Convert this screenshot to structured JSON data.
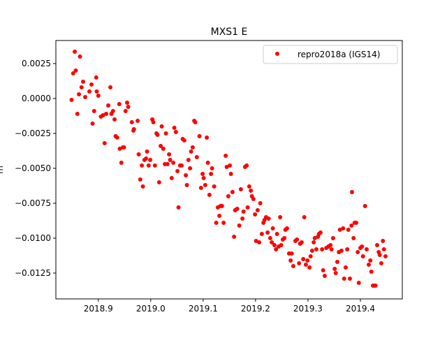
{
  "chart_data": {
    "type": "scatter",
    "title": "MXS1 E",
    "xlabel": "",
    "ylabel": "m",
    "xlim": [
      2018.819,
      2019.48
    ],
    "ylim": [
      -0.01435,
      0.00415
    ],
    "xticks": [
      2018.9,
      2019.0,
      2019.1,
      2019.2,
      2019.3,
      2019.4
    ],
    "xtick_labels": [
      "2018.9",
      "2019.0",
      "2019.1",
      "2019.2",
      "2019.3",
      "2019.4"
    ],
    "yticks": [
      0.0025,
      0.0,
      -0.0025,
      -0.005,
      -0.0075,
      -0.01,
      -0.0125
    ],
    "ytick_labels": [
      "0.0025",
      "0.0000",
      "−0.0025",
      "−0.0050",
      "−0.0075",
      "−0.0100",
      "−0.0125"
    ],
    "grid": false,
    "legend_position": "top-right",
    "series": [
      {
        "name": "repro2018a (IGS14)",
        "color": "#ff0000",
        "marker": "circle",
        "points": [
          [
            2018.849,
            -0.0001
          ],
          [
            2018.855,
            0.00335
          ],
          [
            2018.852,
            0.0018
          ],
          [
            2018.857,
            0.002
          ],
          [
            2018.86,
            -0.0011
          ],
          [
            2018.863,
            0.0003
          ],
          [
            2018.865,
            0.003
          ],
          [
            2018.868,
            0.0008
          ],
          [
            2018.871,
            0.0012
          ],
          [
            2018.875,
            0.0001
          ],
          [
            2018.883,
            0.0005
          ],
          [
            2018.887,
            0.001
          ],
          [
            2018.889,
            -0.0018
          ],
          [
            2018.892,
            -0.0009
          ],
          [
            2018.896,
            0.0015
          ],
          [
            2018.897,
            0.0005
          ],
          [
            2018.9,
            0.0002
          ],
          [
            2018.905,
            -0.0013
          ],
          [
            2018.909,
            -0.0012
          ],
          [
            2018.912,
            -0.0032
          ],
          [
            2018.915,
            -0.0011
          ],
          [
            2018.919,
            -0.0005
          ],
          [
            2018.923,
            0.0008
          ],
          [
            2018.925,
            -0.0011
          ],
          [
            2018.928,
            -0.0009
          ],
          [
            2018.931,
            -0.0015
          ],
          [
            2018.933,
            -0.0027
          ],
          [
            2018.936,
            -0.0028
          ],
          [
            2018.94,
            -0.0004
          ],
          [
            2018.941,
            -0.0036
          ],
          [
            2018.944,
            -0.0046
          ],
          [
            2018.947,
            -0.0035
          ],
          [
            2018.949,
            -0.0035
          ],
          [
            2018.952,
            -0.0009
          ],
          [
            2018.955,
            -0.0003
          ],
          [
            2018.957,
            -0.0006
          ],
          [
            2018.964,
            -0.0017
          ],
          [
            2018.967,
            -0.0023
          ],
          [
            2018.968,
            -0.0022
          ],
          [
            2018.975,
            -0.0016
          ],
          [
            2018.977,
            -0.004
          ],
          [
            2018.98,
            -0.0058
          ],
          [
            2018.983,
            -0.0048
          ],
          [
            2018.985,
            -0.0063
          ],
          [
            2018.988,
            -0.0044
          ],
          [
            2018.991,
            -0.0043
          ],
          [
            2018.993,
            -0.0038
          ],
          [
            2018.996,
            -0.0048
          ],
          [
            2018.999,
            -0.0044
          ],
          [
            2019.003,
            -0.0015
          ],
          [
            2019.005,
            -0.0017
          ],
          [
            2019.008,
            -0.0048
          ],
          [
            2019.011,
            -0.0025
          ],
          [
            2019.013,
            -0.0026
          ],
          [
            2019.016,
            -0.006
          ],
          [
            2019.019,
            -0.0034
          ],
          [
            2019.021,
            -0.002
          ],
          [
            2019.024,
            -0.0036
          ],
          [
            2019.027,
            -0.0047
          ],
          [
            2019.029,
            -0.0025
          ],
          [
            2019.032,
            -0.0047
          ],
          [
            2019.035,
            -0.004
          ],
          [
            2019.037,
            -0.0044
          ],
          [
            2019.04,
            -0.0057
          ],
          [
            2019.043,
            -0.0046
          ],
          [
            2019.045,
            -0.0021
          ],
          [
            2019.048,
            -0.0024
          ],
          [
            2019.051,
            -0.0052
          ],
          [
            2019.053,
            -0.0078
          ],
          [
            2019.056,
            -0.0048
          ],
          [
            2019.059,
            -0.0048
          ],
          [
            2019.061,
            -0.0029
          ],
          [
            2019.064,
            -0.003
          ],
          [
            2019.067,
            -0.0055
          ],
          [
            2019.069,
            -0.0062
          ],
          [
            2019.072,
            -0.0044
          ],
          [
            2019.075,
            -0.005
          ],
          [
            2019.077,
            -0.0038
          ],
          [
            2019.08,
            -0.0035
          ],
          [
            2019.083,
            -0.0016
          ],
          [
            2019.085,
            -0.0017
          ],
          [
            2019.088,
            -0.0042
          ],
          [
            2019.093,
            -0.0027
          ],
          [
            2019.096,
            -0.0064
          ],
          [
            2019.099,
            -0.0054
          ],
          [
            2019.101,
            -0.0057
          ],
          [
            2019.104,
            -0.0062
          ],
          [
            2019.107,
            -0.0028
          ],
          [
            2019.109,
            -0.0046
          ],
          [
            2019.112,
            -0.0069
          ],
          [
            2019.115,
            -0.0054
          ],
          [
            2019.117,
            -0.005
          ],
          [
            2019.121,
            -0.0063
          ],
          [
            2019.125,
            -0.0089
          ],
          [
            2019.128,
            -0.0078
          ],
          [
            2019.131,
            -0.0084
          ],
          [
            2019.133,
            -0.0077
          ],
          [
            2019.136,
            -0.0077
          ],
          [
            2019.139,
            -0.0089
          ],
          [
            2019.143,
            -0.0041
          ],
          [
            2019.145,
            -0.0049
          ],
          [
            2019.148,
            -0.007
          ],
          [
            2019.151,
            -0.0048
          ],
          [
            2019.153,
            -0.0054
          ],
          [
            2019.156,
            -0.0067
          ],
          [
            2019.159,
            -0.0099
          ],
          [
            2019.161,
            -0.008
          ],
          [
            2019.165,
            -0.0079
          ],
          [
            2019.169,
            -0.0091
          ],
          [
            2019.172,
            -0.0065
          ],
          [
            2019.175,
            -0.0086
          ],
          [
            2019.177,
            -0.0081
          ],
          [
            2019.18,
            -0.0049
          ],
          [
            2019.183,
            -0.0048
          ],
          [
            2019.185,
            -0.0078
          ],
          [
            2019.188,
            -0.0063
          ],
          [
            2019.191,
            -0.0066
          ],
          [
            2019.193,
            -0.007
          ],
          [
            2019.196,
            -0.0072
          ],
          [
            2019.199,
            -0.0083
          ],
          [
            2019.201,
            -0.0102
          ],
          [
            2019.204,
            -0.008
          ],
          [
            2019.207,
            -0.0103
          ],
          [
            2019.209,
            -0.0075
          ],
          [
            2019.212,
            -0.0097
          ],
          [
            2019.215,
            -0.0089
          ],
          [
            2019.217,
            -0.0087
          ],
          [
            2019.22,
            -0.0085
          ],
          [
            2019.223,
            -0.0096
          ],
          [
            2019.225,
            -0.0086
          ],
          [
            2019.228,
            -0.01
          ],
          [
            2019.231,
            -0.0103
          ],
          [
            2019.233,
            -0.0093
          ],
          [
            2019.236,
            -0.0105
          ],
          [
            2019.239,
            -0.0108
          ],
          [
            2019.241,
            -0.0097
          ],
          [
            2019.244,
            -0.0106
          ],
          [
            2019.247,
            -0.0085
          ],
          [
            2019.249,
            -0.0105
          ],
          [
            2019.252,
            -0.0101
          ],
          [
            2019.255,
            -0.01
          ],
          [
            2019.257,
            -0.0094
          ],
          [
            2019.26,
            -0.0093
          ],
          [
            2019.264,
            -0.0111
          ],
          [
            2019.267,
            -0.0116
          ],
          [
            2019.269,
            -0.0111
          ],
          [
            2019.272,
            -0.012
          ],
          [
            2019.276,
            -0.0102
          ],
          [
            2019.279,
            -0.0101
          ],
          [
            2019.283,
            -0.0118
          ],
          [
            2019.285,
            -0.0104
          ],
          [
            2019.288,
            -0.0103
          ],
          [
            2019.291,
            -0.0115
          ],
          [
            2019.293,
            -0.0085
          ],
          [
            2019.296,
            -0.0119
          ],
          [
            2019.299,
            -0.0116
          ],
          [
            2019.303,
            -0.0121
          ],
          [
            2019.305,
            -0.0113
          ],
          [
            2019.308,
            -0.0109
          ],
          [
            2019.311,
            -0.0103
          ],
          [
            2019.313,
            -0.01
          ],
          [
            2019.316,
            -0.0108
          ],
          [
            2019.319,
            -0.0099
          ],
          [
            2019.321,
            -0.0097
          ],
          [
            2019.324,
            -0.0096
          ],
          [
            2019.327,
            -0.0108
          ],
          [
            2019.329,
            -0.0123
          ],
          [
            2019.332,
            -0.0127
          ],
          [
            2019.335,
            -0.0107
          ],
          [
            2019.339,
            -0.0106
          ],
          [
            2019.343,
            -0.0105
          ],
          [
            2019.345,
            -0.0108
          ],
          [
            2019.348,
            -0.01
          ],
          [
            2019.351,
            -0.0122
          ],
          [
            2019.353,
            -0.0125
          ],
          [
            2019.356,
            -0.0117
          ],
          [
            2019.359,
            -0.011
          ],
          [
            2019.361,
            -0.0094
          ],
          [
            2019.364,
            -0.0109
          ],
          [
            2019.367,
            -0.0093
          ],
          [
            2019.369,
            -0.0129
          ],
          [
            2019.372,
            -0.0121
          ],
          [
            2019.375,
            -0.0108
          ],
          [
            2019.377,
            -0.0094
          ],
          [
            2019.38,
            -0.0129
          ],
          [
            2019.383,
            -0.0091
          ],
          [
            2019.384,
            -0.0067
          ],
          [
            2019.387,
            -0.01
          ],
          [
            2019.389,
            -0.0089
          ],
          [
            2019.392,
            -0.0089
          ],
          [
            2019.395,
            -0.011
          ],
          [
            2019.397,
            -0.0132
          ],
          [
            2019.4,
            -0.0107
          ],
          [
            2019.403,
            -0.0106
          ],
          [
            2019.405,
            -0.0113
          ],
          [
            2019.409,
            -0.0077
          ],
          [
            2019.412,
            -0.0108
          ],
          [
            2019.416,
            -0.0119
          ],
          [
            2019.419,
            -0.0116
          ],
          [
            2019.421,
            -0.0124
          ],
          [
            2019.424,
            -0.0134
          ],
          [
            2019.427,
            -0.0134
          ],
          [
            2019.429,
            -0.0134
          ],
          [
            2019.432,
            -0.0105
          ],
          [
            2019.435,
            -0.011
          ],
          [
            2019.437,
            -0.0112
          ],
          [
            2019.44,
            -0.0118
          ],
          [
            2019.443,
            -0.0102
          ],
          [
            2019.445,
            -0.0108
          ],
          [
            2019.448,
            -0.0113
          ]
        ]
      }
    ]
  }
}
